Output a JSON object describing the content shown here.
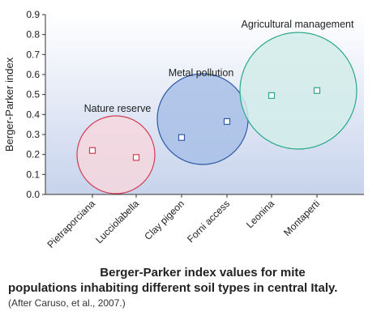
{
  "chart_data": {
    "type": "scatter",
    "title": "",
    "xlabel": "",
    "ylabel": "Berger-Parker index",
    "ylim": [
      0,
      0.9
    ],
    "yticks": [
      "0.0",
      "0.1",
      "0.2",
      "0.3",
      "0.4",
      "0.5",
      "0.6",
      "0.7",
      "0.8",
      "0.9"
    ],
    "categories": [
      "Pietraporciana",
      "Lucciolabella",
      "Clay pigeon",
      "Forni access",
      "Leonina",
      "Montaperti"
    ],
    "values": [
      0.22,
      0.185,
      0.285,
      0.365,
      0.495,
      0.52
    ],
    "groups": [
      {
        "label": "Nature reserve",
        "members": [
          0,
          1
        ],
        "color": "#d23c55",
        "fill": "#f6d7de"
      },
      {
        "label": "Metal pollution",
        "members": [
          2,
          3
        ],
        "color": "#2e5aa8",
        "fill": "#a8bfe6"
      },
      {
        "label": "Agricultural management",
        "members": [
          4,
          5
        ],
        "color": "#2aa88a",
        "fill": "#d2ecea"
      }
    ],
    "background_gradient": [
      "#ffffff",
      "#c7d3ec"
    ],
    "grid": false
  },
  "caption": {
    "line1": "Berger-Parker index values for mite",
    "line2": "populations inhabiting different soil types in central Italy.",
    "line3": "(After Caruso, et al., 2007.)"
  }
}
